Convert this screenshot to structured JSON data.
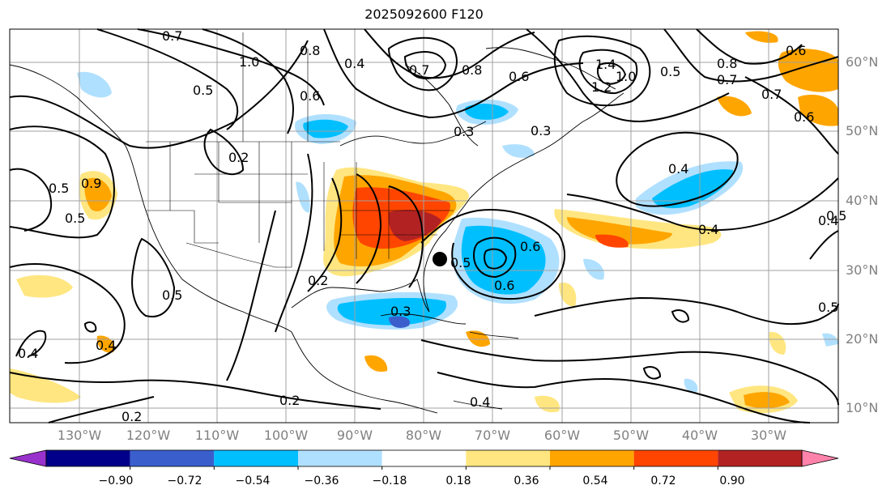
{
  "title": "2025092600 F120",
  "lat_labels": [
    "60°N",
    "50°N",
    "40°N",
    "30°N",
    "20°N",
    "10°N"
  ],
  "lon_labels": [
    "130°W",
    "120°W",
    "110°W",
    "100°W",
    "90°W",
    "80°W",
    "70°W",
    "60°W",
    "50°W",
    "40°W",
    "30°W"
  ],
  "colorbar": {
    "tick_labels": [
      "−0.90",
      "−0.72",
      "−0.54",
      "−0.36",
      "−0.18",
      "0.18",
      "0.36",
      "0.54",
      "0.72",
      "0.90"
    ],
    "colors": [
      "#9932cc",
      "#00008b",
      "#3a5fcd",
      "#00bfff",
      "#b0e0ff",
      "#ffffff",
      "#ffe680",
      "#ffa500",
      "#ff4500",
      "#b22222",
      "#ff82ab"
    ]
  },
  "contour_labels": [
    "0.7",
    "1.0",
    "0.8",
    "0.4",
    "0.7",
    "0.8",
    "0.6",
    "0.6",
    "1.4",
    "1.2",
    "1.0",
    "0.8",
    "0.7",
    "0.6",
    "0.5",
    "0.2",
    "0.9",
    "0.5",
    "0.3",
    "0.5",
    "0.5",
    "0.2",
    "0.4",
    "0.4",
    "0.5",
    "0.6",
    "0.3",
    "0.6",
    "0.3",
    "0.4",
    "0.4",
    "0.5",
    "0.5",
    "0.4",
    "0.2",
    "0.2",
    "0.4",
    "0.5",
    "0.6",
    "0.7"
  ],
  "marker": "storm-position-dot"
}
